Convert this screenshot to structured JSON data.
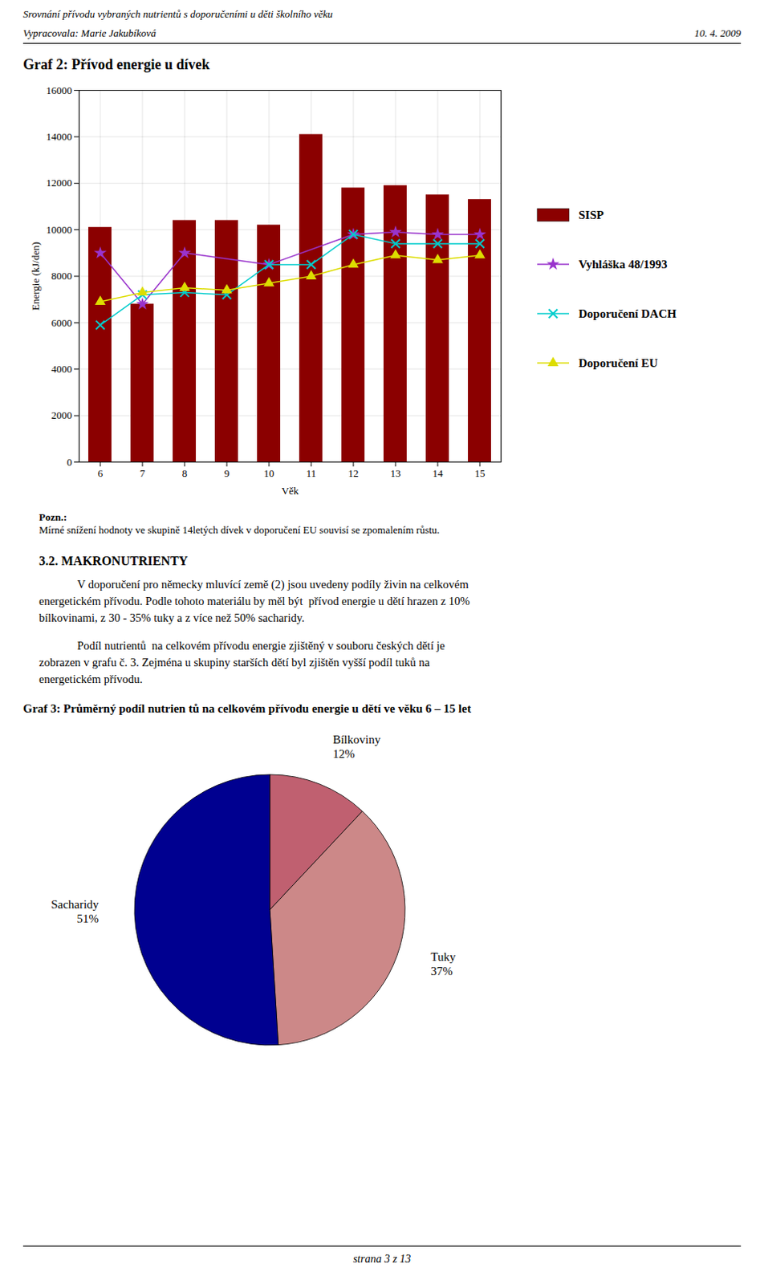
{
  "header": {
    "title": "Srovnání přívodu vybraných nutrientů s doporučeními u děti školního věku",
    "author": "Vypracovala: Marie Jakubíková",
    "date": "10. 4. 2009"
  },
  "chart_data": [
    {
      "type": "bar",
      "title": "Graf 2: Přívod energie u dívek",
      "xlabel": "Věk",
      "ylabel": "Energie (kJ/den)",
      "x": [
        6,
        7,
        8,
        9,
        10,
        11,
        12,
        13,
        14,
        15
      ],
      "xlim": [
        5.5,
        15.5
      ],
      "xticks": [
        6,
        7,
        8,
        9,
        10,
        11,
        12,
        13,
        14,
        15
      ],
      "ylim": [
        0,
        16000
      ],
      "yticks": [
        0,
        2000,
        4000,
        6000,
        8000,
        10000,
        12000,
        14000,
        16000
      ],
      "grid": true,
      "legend": "right",
      "series": [
        {
          "name": "SISP",
          "type": "bar",
          "color": "#8B0000",
          "values": [
            10100,
            6800,
            10400,
            10400,
            10200,
            14100,
            11800,
            11900,
            11500,
            11300
          ]
        },
        {
          "name": "Vyhláška 48/1993",
          "type": "line",
          "marker": "star",
          "color": "#9933CC",
          "values": [
            9000,
            6800,
            9000,
            null,
            8500,
            null,
            9800,
            9900,
            9800,
            9800
          ]
        },
        {
          "name": "Doporučení DACH",
          "type": "line",
          "marker": "x",
          "color": "#00CCCC",
          "values": [
            5900,
            7200,
            7300,
            7200,
            8500,
            8500,
            9800,
            9400,
            9400,
            9400
          ]
        },
        {
          "name": "Doporučení EU",
          "type": "line",
          "marker": "triangle",
          "color": "#DDDD00",
          "values": [
            6900,
            7300,
            7500,
            7400,
            7700,
            8000,
            8500,
            8900,
            8700,
            8900
          ]
        }
      ]
    },
    {
      "type": "pie",
      "title": "Graf 3: Průměrný podíl nutrien tů na celkovém přívodu energie u dětí ve věku 6 – 15 let",
      "categories": [
        "Bílkoviny",
        "Tuky",
        "Sacharidy"
      ],
      "values": [
        12,
        37,
        51
      ],
      "value_labels": [
        "12%",
        "37%",
        "51%"
      ],
      "colors": [
        "#C06070",
        "#CC8888",
        "#000090"
      ]
    }
  ],
  "note": {
    "label": "Pozn.:",
    "text": "Mírné snížení hodnoty ve skupině 14letých dívek v doporučení EU souvisí se zpomalením růstu."
  },
  "section_title": "3.2. MAKRONUTRIENTY",
  "paragraphs": [
    [
      "V doporučení pro německy mluvící země (2) jsou uvedeny podíly živin na celkovém",
      "energetickém přívodu. Podle tohoto materiálu by měl být  přívod energie u dětí hrazen z 10%",
      "bílkovinami, z 30 - 35% tuky a z více než 50% sacharidy."
    ],
    [
      "Podíl nutrientů  na celkovém přívodu energie zjištěný v souboru českých dětí je",
      "zobrazen v grafu č. 3. Zejména u skupiny starších dětí byl zjištěn vyšší podíl tuků na",
      "energetickém přívodu."
    ]
  ],
  "footer": "strana 3 z 13"
}
